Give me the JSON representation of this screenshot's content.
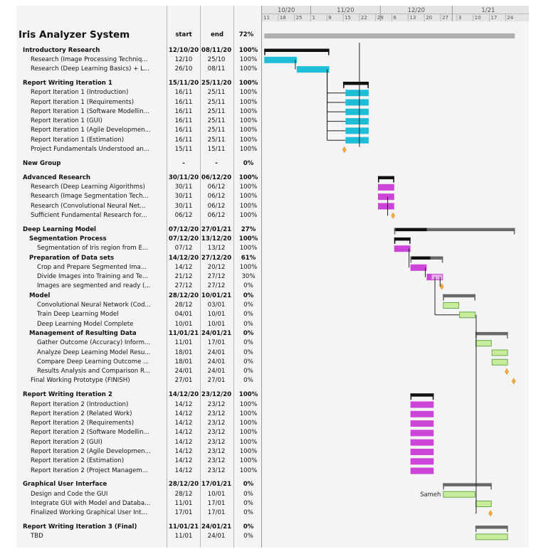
{
  "chart_data": {
    "type": "gantt",
    "title": "Iris Analyzer System",
    "columns": {
      "start": "start",
      "end": "end",
      "pct": "72%"
    },
    "timeline": {
      "months": [
        "10/20",
        "11/20",
        "12/20",
        "1/21"
      ],
      "days": [
        "11",
        "18",
        "25",
        "1",
        "8",
        "15",
        "22",
        "29",
        "6",
        "13",
        "20",
        "27",
        "3",
        "10",
        "17",
        "24"
      ]
    },
    "colors": {
      "summary": "#111111",
      "summary_gray": "#686868",
      "cyan": "#1ebed8",
      "magenta": "#cc44d8",
      "green": "#c8ec9c",
      "milestone": "#f6ad3c"
    },
    "rows": [
      {
        "name": "Introductory Research",
        "start": "12/10/20",
        "end": "08/11/20",
        "pct": "100%",
        "level": 1,
        "bold": true,
        "bar": {
          "type": "summary",
          "s": "2020-10-12",
          "e": "2020-11-08",
          "progress": 1.0
        }
      },
      {
        "name": "Research (Image Processing Techniq...",
        "start": "12/10",
        "end": "25/10",
        "pct": "100%",
        "level": 2,
        "bar": {
          "type": "task",
          "color": "cyan",
          "s": "2020-10-12",
          "e": "2020-10-25",
          "progress": 1.0
        }
      },
      {
        "name": "Research (Deep Learning Basics) + L...",
        "start": "26/10",
        "end": "08/11",
        "pct": "100%",
        "level": 2,
        "bar": {
          "type": "task",
          "color": "cyan",
          "s": "2020-10-26",
          "e": "2020-11-08",
          "progress": 1.0
        }
      },
      {
        "gap": true
      },
      {
        "name": "Report Writing Iteration 1",
        "start": "15/11/20",
        "end": "25/11/20",
        "pct": "100%",
        "level": 1,
        "bold": true,
        "bar": {
          "type": "summary",
          "s": "2020-11-15",
          "e": "2020-11-25",
          "progress": 1.0
        }
      },
      {
        "name": "Report Iteration 1 (Introduction)",
        "start": "16/11",
        "end": "25/11",
        "pct": "100%",
        "level": 2,
        "bar": {
          "type": "task",
          "color": "cyan",
          "s": "2020-11-16",
          "e": "2020-11-25",
          "progress": 1.0
        }
      },
      {
        "name": "Report Iteration 1 (Requirements)",
        "start": "16/11",
        "end": "25/11",
        "pct": "100%",
        "level": 2,
        "bar": {
          "type": "task",
          "color": "cyan",
          "s": "2020-11-16",
          "e": "2020-11-25",
          "progress": 1.0
        }
      },
      {
        "name": "Report Iteration 1 (Software Modellin...",
        "start": "16/11",
        "end": "25/11",
        "pct": "100%",
        "level": 2,
        "bar": {
          "type": "task",
          "color": "cyan",
          "s": "2020-11-16",
          "e": "2020-11-25",
          "progress": 1.0
        }
      },
      {
        "name": "Report Iteration 1 (GUI)",
        "start": "16/11",
        "end": "25/11",
        "pct": "100%",
        "level": 2,
        "bar": {
          "type": "task",
          "color": "cyan",
          "s": "2020-11-16",
          "e": "2020-11-25",
          "progress": 1.0
        }
      },
      {
        "name": "Report Iteration 1 (Agile Developmen...",
        "start": "16/11",
        "end": "25/11",
        "pct": "100%",
        "level": 2,
        "bar": {
          "type": "task",
          "color": "cyan",
          "s": "2020-11-16",
          "e": "2020-11-25",
          "progress": 1.0
        }
      },
      {
        "name": "Report Iteration 1 (Estimation)",
        "start": "16/11",
        "end": "25/11",
        "pct": "100%",
        "level": 2,
        "bar": {
          "type": "task",
          "color": "cyan",
          "s": "2020-11-16",
          "e": "2020-11-25",
          "progress": 1.0
        }
      },
      {
        "name": "Project Fundamentals Understood an...",
        "start": "15/11",
        "end": "15/11",
        "pct": "100%",
        "level": 2,
        "bar": {
          "type": "milestone",
          "s": "2020-11-15"
        }
      },
      {
        "gap": true
      },
      {
        "name": "New Group",
        "start": "-",
        "end": "-",
        "pct": "0%",
        "level": 1,
        "bold": true
      },
      {
        "gap": true
      },
      {
        "name": "Advanced Research",
        "start": "30/11/20",
        "end": "06/12/20",
        "pct": "100%",
        "level": 1,
        "bold": true,
        "bar": {
          "type": "summary",
          "s": "2020-11-30",
          "e": "2020-12-06",
          "progress": 1.0
        }
      },
      {
        "name": "Research (Deep Learning Algorithms)",
        "start": "30/11",
        "end": "06/12",
        "pct": "100%",
        "level": 2,
        "bar": {
          "type": "task",
          "color": "magenta",
          "s": "2020-11-30",
          "e": "2020-12-06",
          "progress": 1.0
        }
      },
      {
        "name": "Research (Image Segmentation Tech...",
        "start": "30/11",
        "end": "06/12",
        "pct": "100%",
        "level": 2,
        "bar": {
          "type": "task",
          "color": "magenta",
          "s": "2020-11-30",
          "e": "2020-12-06",
          "progress": 1.0
        }
      },
      {
        "name": "Research (Convolutional Neural Net...",
        "start": "30/11",
        "end": "06/12",
        "pct": "100%",
        "level": 2,
        "bar": {
          "type": "task",
          "color": "magenta",
          "s": "2020-11-30",
          "e": "2020-12-06",
          "progress": 1.0
        }
      },
      {
        "name": "Sufficient Fundamental Research for...",
        "start": "06/12",
        "end": "06/12",
        "pct": "100%",
        "level": 2,
        "bar": {
          "type": "milestone",
          "s": "2020-12-06"
        }
      },
      {
        "gap": true
      },
      {
        "name": "Deep Learning Model",
        "start": "07/12/20",
        "end": "27/01/21",
        "pct": "27%",
        "level": 1,
        "bold": true,
        "bar": {
          "type": "summary",
          "s": "2020-12-07",
          "e": "2021-01-27",
          "progress": 0.27
        }
      },
      {
        "name": "Segmentation Process",
        "start": "07/12/20",
        "end": "13/12/20",
        "pct": "100%",
        "level": 2,
        "bold": true,
        "bar": {
          "type": "summary",
          "s": "2020-12-07",
          "e": "2020-12-13",
          "progress": 1.0
        }
      },
      {
        "name": "Segmentation of Iris region from E...",
        "start": "07/12",
        "end": "13/12",
        "pct": "100%",
        "level": 3,
        "bar": {
          "type": "task",
          "color": "magenta",
          "s": "2020-12-07",
          "e": "2020-12-13",
          "progress": 1.0
        }
      },
      {
        "name": "Preparation of Data sets",
        "start": "14/12/20",
        "end": "27/12/20",
        "pct": "61%",
        "level": 2,
        "bold": true,
        "bar": {
          "type": "summary",
          "s": "2020-12-14",
          "e": "2020-12-27",
          "progress": 0.61
        }
      },
      {
        "name": "Crop and Prepare Segmented Ima...",
        "start": "14/12",
        "end": "20/12",
        "pct": "100%",
        "level": 3,
        "bar": {
          "type": "task",
          "color": "magenta",
          "s": "2020-12-14",
          "e": "2020-12-20",
          "progress": 1.0
        }
      },
      {
        "name": "Divide Images into Training and Te...",
        "start": "21/12",
        "end": "27/12",
        "pct": "30%",
        "level": 3,
        "bar": {
          "type": "task",
          "color": "magenta",
          "s": "2020-12-21",
          "e": "2020-12-27",
          "progress": 0.3
        }
      },
      {
        "name": "Images are segmented and ready (...",
        "start": "27/12",
        "end": "27/12",
        "pct": "0%",
        "level": 3,
        "bar": {
          "type": "milestone",
          "s": "2020-12-27"
        }
      },
      {
        "name": "Model",
        "start": "28/12/20",
        "end": "10/01/21",
        "pct": "0%",
        "level": 2,
        "bold": true,
        "bar": {
          "type": "summary",
          "s": "2020-12-28",
          "e": "2021-01-10",
          "progress": 0
        }
      },
      {
        "name": "Convolutional Neural Network (Cod...",
        "start": "28/12",
        "end": "03/01",
        "pct": "0%",
        "level": 3,
        "bar": {
          "type": "task",
          "color": "green",
          "s": "2020-12-28",
          "e": "2021-01-03",
          "progress": 0
        }
      },
      {
        "name": "Train Deep Learning Model",
        "start": "04/01",
        "end": "10/01",
        "pct": "0%",
        "level": 3,
        "bar": {
          "type": "task",
          "color": "green",
          "s": "2021-01-04",
          "e": "2021-01-10",
          "progress": 0
        }
      },
      {
        "name": "Deep Learning Model Complete",
        "start": "10/01",
        "end": "10/01",
        "pct": "0%",
        "level": 3
      },
      {
        "name": "Management of Resulting Data",
        "start": "11/01/21",
        "end": "24/01/21",
        "pct": "0%",
        "level": 2,
        "bold": true,
        "bar": {
          "type": "summary",
          "s": "2021-01-11",
          "e": "2021-01-24",
          "progress": 0
        }
      },
      {
        "name": "Gather Outcome (Accuracy) Inform...",
        "start": "11/01",
        "end": "17/01",
        "pct": "0%",
        "level": 3,
        "bar": {
          "type": "task",
          "color": "green",
          "s": "2021-01-11",
          "e": "2021-01-17",
          "progress": 0
        }
      },
      {
        "name": "Analyze Deep Learning Model Resu...",
        "start": "18/01",
        "end": "24/01",
        "pct": "0%",
        "level": 3,
        "bar": {
          "type": "task",
          "color": "green",
          "s": "2021-01-18",
          "e": "2021-01-24",
          "progress": 0
        }
      },
      {
        "name": "Compare Deep Learning Outcome ...",
        "start": "18/01",
        "end": "24/01",
        "pct": "0%",
        "level": 3,
        "bar": {
          "type": "task",
          "color": "green",
          "s": "2021-01-18",
          "e": "2021-01-24",
          "progress": 0
        }
      },
      {
        "name": "Results Analysis and Comparison R...",
        "start": "24/01",
        "end": "24/01",
        "pct": "0%",
        "level": 3,
        "bar": {
          "type": "milestone",
          "s": "2021-01-24"
        }
      },
      {
        "name": "Final Working Prototype (FINISH)",
        "start": "27/01",
        "end": "27/01",
        "pct": "0%",
        "level": 2,
        "bar": {
          "type": "milestone",
          "s": "2021-01-27"
        }
      },
      {
        "gap": true
      },
      {
        "name": "Report Writing Iteration 2",
        "start": "14/12/20",
        "end": "23/12/20",
        "pct": "100%",
        "level": 1,
        "bold": true,
        "bar": {
          "type": "summary",
          "s": "2020-12-14",
          "e": "2020-12-23",
          "progress": 1.0
        }
      },
      {
        "name": "Report Iteration 2 (Introduction)",
        "start": "14/12",
        "end": "23/12",
        "pct": "100%",
        "level": 2,
        "bar": {
          "type": "task",
          "color": "magenta",
          "s": "2020-12-14",
          "e": "2020-12-23",
          "progress": 1.0
        }
      },
      {
        "name": "Report Iteration 2 (Related Work)",
        "start": "14/12",
        "end": "23/12",
        "pct": "100%",
        "level": 2,
        "bar": {
          "type": "task",
          "color": "magenta",
          "s": "2020-12-14",
          "e": "2020-12-23",
          "progress": 1.0
        }
      },
      {
        "name": "Report Iteration 2 (Requirements)",
        "start": "14/12",
        "end": "23/12",
        "pct": "100%",
        "level": 2,
        "bar": {
          "type": "task",
          "color": "magenta",
          "s": "2020-12-14",
          "e": "2020-12-23",
          "progress": 1.0
        }
      },
      {
        "name": "Report Iteration 2 (Software Modellin...",
        "start": "14/12",
        "end": "23/12",
        "pct": "100%",
        "level": 2,
        "bar": {
          "type": "task",
          "color": "magenta",
          "s": "2020-12-14",
          "e": "2020-12-23",
          "progress": 1.0
        }
      },
      {
        "name": "Report Iteration 2 (GUI)",
        "start": "14/12",
        "end": "23/12",
        "pct": "100%",
        "level": 2,
        "bar": {
          "type": "task",
          "color": "magenta",
          "s": "2020-12-14",
          "e": "2020-12-23",
          "progress": 1.0
        }
      },
      {
        "name": "Report Iteration 2 (Agile Developmen...",
        "start": "14/12",
        "end": "23/12",
        "pct": "100%",
        "level": 2,
        "bar": {
          "type": "task",
          "color": "magenta",
          "s": "2020-12-14",
          "e": "2020-12-23",
          "progress": 1.0
        }
      },
      {
        "name": "Report Iteration 2 (Estimation)",
        "start": "14/12",
        "end": "23/12",
        "pct": "100%",
        "level": 2,
        "bar": {
          "type": "task",
          "color": "magenta",
          "s": "2020-12-14",
          "e": "2020-12-23",
          "progress": 1.0
        }
      },
      {
        "name": "Report Iteration 2 (Project Managem...",
        "start": "14/12",
        "end": "23/12",
        "pct": "100%",
        "level": 2,
        "bar": {
          "type": "task",
          "color": "magenta",
          "s": "2020-12-14",
          "e": "2020-12-23",
          "progress": 1.0
        }
      },
      {
        "gap": true
      },
      {
        "name": "Graphical User Interface",
        "start": "28/12/20",
        "end": "17/01/21",
        "pct": "0%",
        "level": 1,
        "bold": true,
        "bar": {
          "type": "summary",
          "s": "2020-12-28",
          "e": "2021-01-17",
          "progress": 0
        }
      },
      {
        "name": "Design and Code the GUI",
        "start": "28/12",
        "end": "10/01",
        "pct": "0%",
        "level": 2,
        "bar": {
          "type": "task",
          "color": "green",
          "s": "2020-12-28",
          "e": "2021-01-10",
          "progress": 0,
          "resource": "Sameh"
        }
      },
      {
        "name": "Integrate GUI with Model and Databa...",
        "start": "11/01",
        "end": "17/01",
        "pct": "0%",
        "level": 2,
        "bar": {
          "type": "task",
          "color": "green",
          "s": "2021-01-11",
          "e": "2021-01-17",
          "progress": 0
        }
      },
      {
        "name": "Finalized Working Graphical User Int...",
        "start": "17/01",
        "end": "17/01",
        "pct": "0%",
        "level": 2,
        "bar": {
          "type": "milestone",
          "s": "2021-01-17"
        }
      },
      {
        "gap": true
      },
      {
        "name": "Report Writing Iteration 3 (Final)",
        "start": "11/01/21",
        "end": "24/01/21",
        "pct": "0%",
        "level": 1,
        "bold": true,
        "bar": {
          "type": "summary",
          "s": "2021-01-11",
          "e": "2021-01-24",
          "progress": 0
        }
      },
      {
        "name": "TBD",
        "start": "11/01",
        "end": "24/01",
        "pct": "0%",
        "level": 2,
        "bar": {
          "type": "task",
          "color": "green",
          "s": "2021-01-11",
          "e": "2021-01-24",
          "progress": 0
        }
      }
    ]
  }
}
